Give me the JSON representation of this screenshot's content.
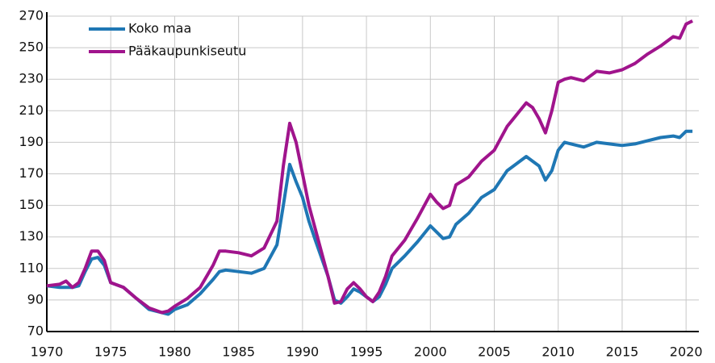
{
  "chart_data": {
    "type": "line",
    "x": [
      1970,
      1971,
      1971.5,
      1972,
      1972.5,
      1973,
      1973.5,
      1974,
      1974.5,
      1975,
      1976,
      1977,
      1978,
      1979,
      1979.5,
      1980,
      1981,
      1982,
      1983,
      1983.5,
      1984,
      1985,
      1986,
      1987,
      1988,
      1988.5,
      1989,
      1989.5,
      1990,
      1990.5,
      1991,
      1992,
      1992.5,
      1993,
      1993.5,
      1994,
      1994.5,
      1995,
      1995.5,
      1996,
      1996.5,
      1997,
      1998,
      1999,
      2000,
      2000.5,
      2001,
      2001.5,
      2002,
      2003,
      2004,
      2005,
      2006,
      2007,
      2007.5,
      2008,
      2008.5,
      2009,
      2009.5,
      2010,
      2010.5,
      2011,
      2012,
      2013,
      2014,
      2015,
      2016,
      2017,
      2018,
      2019,
      2019.5,
      2020,
      2020.5
    ],
    "series": [
      {
        "name": "Koko maa",
        "color": "#1f77b4",
        "values": [
          99,
          98,
          98,
          98,
          99,
          108,
          116,
          117,
          112,
          101,
          98,
          91,
          84,
          82,
          81,
          84,
          87,
          94,
          103,
          108,
          109,
          108,
          107,
          110,
          125,
          150,
          176,
          165,
          155,
          140,
          128,
          105,
          90,
          88,
          92,
          97,
          95,
          92,
          89,
          92,
          100,
          110,
          118,
          127,
          137,
          133,
          129,
          130,
          138,
          145,
          155,
          160,
          172,
          178,
          181,
          178,
          175,
          166,
          172,
          185,
          190,
          189,
          187,
          190,
          189,
          188,
          189,
          191,
          193,
          194,
          193,
          197,
          197
        ]
      },
      {
        "name": "Pääkaupunkiseutu",
        "color": "#a0148c",
        "values": [
          99,
          100,
          102,
          98,
          101,
          110,
          121,
          121,
          115,
          101,
          98,
          91,
          85,
          82,
          83,
          86,
          91,
          98,
          112,
          121,
          121,
          120,
          118,
          123,
          140,
          175,
          202,
          190,
          170,
          150,
          135,
          105,
          88,
          89,
          97,
          101,
          97,
          92,
          89,
          95,
          105,
          118,
          128,
          142,
          157,
          152,
          148,
          150,
          163,
          168,
          178,
          185,
          200,
          210,
          215,
          212,
          205,
          196,
          210,
          228,
          230,
          231,
          229,
          235,
          234,
          236,
          240,
          246,
          251,
          257,
          256,
          265,
          267
        ]
      }
    ],
    "xlim": [
      1970,
      2021
    ],
    "xticks": [
      1970,
      1975,
      1980,
      1985,
      1990,
      1995,
      2000,
      2005,
      2010,
      2015,
      2020
    ],
    "ylim": [
      70,
      270
    ],
    "yticks": [
      70,
      90,
      110,
      130,
      150,
      170,
      190,
      210,
      230,
      250,
      270
    ],
    "grid": true,
    "legend": "upper left"
  }
}
